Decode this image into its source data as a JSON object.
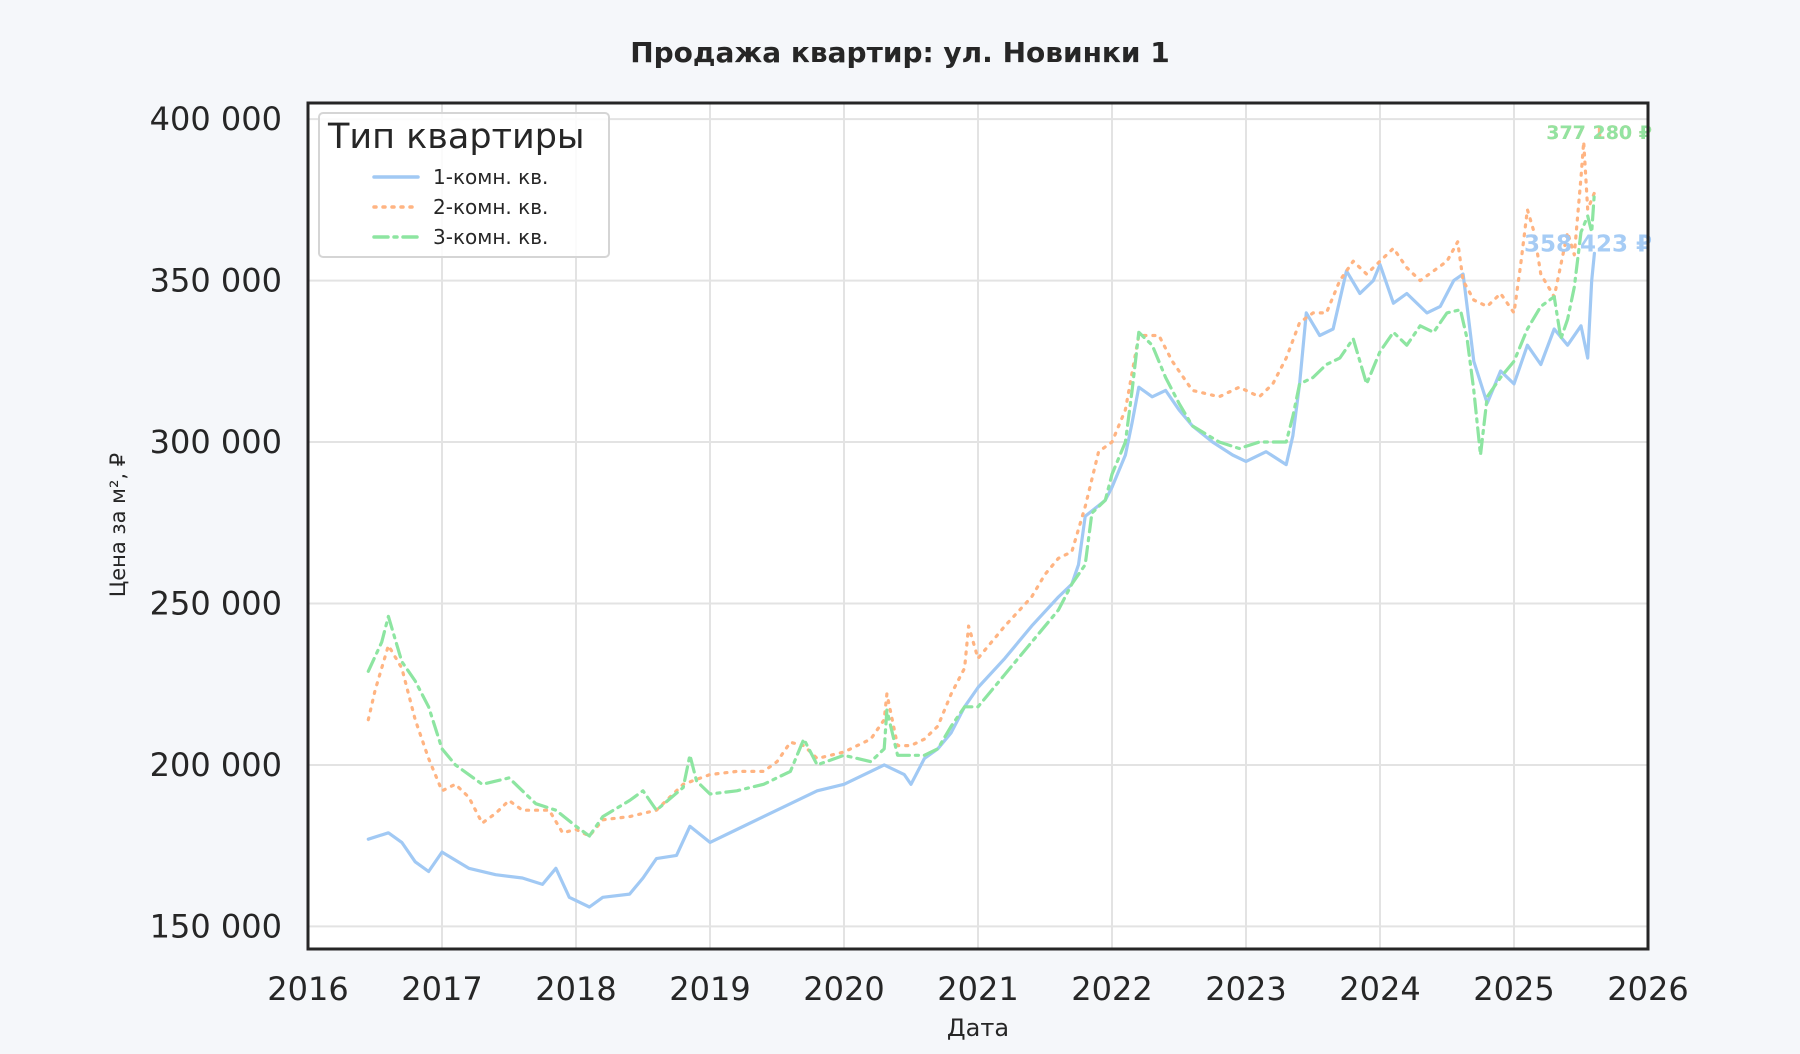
{
  "chart_data": {
    "type": "line",
    "title": "Продажа квартир: ул. Новинки 1",
    "xlabel": "Дата",
    "ylabel": "Цена за м², ₽",
    "xlim": [
      2016,
      2026
    ],
    "ylim": [
      143000,
      405000
    ],
    "x_ticks": [
      2016,
      2017,
      2018,
      2019,
      2020,
      2021,
      2022,
      2023,
      2024,
      2025,
      2026
    ],
    "x_tick_labels": [
      "2016",
      "2017",
      "2018",
      "2019",
      "2020",
      "2021",
      "2022",
      "2023",
      "2024",
      "2025",
      "2026"
    ],
    "y_ticks": [
      150000,
      200000,
      250000,
      300000,
      350000,
      400000
    ],
    "y_tick_labels": [
      "150 000",
      "200 000",
      "250 000",
      "300 000",
      "350 000",
      "400 000"
    ],
    "grid": true,
    "legend": {
      "title": "Тип квартиры",
      "position": "top-left"
    },
    "series": [
      {
        "name": "1-комн. кв.",
        "color": "#a1c9f4",
        "style": "solid",
        "end_label": "358 423 ₽",
        "points": [
          [
            2016.45,
            177000
          ],
          [
            2016.6,
            179000
          ],
          [
            2016.7,
            176000
          ],
          [
            2016.8,
            170000
          ],
          [
            2016.9,
            167000
          ],
          [
            2017.0,
            173000
          ],
          [
            2017.2,
            168000
          ],
          [
            2017.4,
            166000
          ],
          [
            2017.6,
            165000
          ],
          [
            2017.75,
            163000
          ],
          [
            2017.85,
            168000
          ],
          [
            2017.95,
            159000
          ],
          [
            2018.1,
            156000
          ],
          [
            2018.2,
            159000
          ],
          [
            2018.4,
            160000
          ],
          [
            2018.5,
            165000
          ],
          [
            2018.6,
            171000
          ],
          [
            2018.75,
            172000
          ],
          [
            2018.85,
            181000
          ],
          [
            2019.0,
            176000
          ],
          [
            2019.2,
            180000
          ],
          [
            2019.4,
            184000
          ],
          [
            2019.6,
            188000
          ],
          [
            2019.8,
            192000
          ],
          [
            2020.0,
            194000
          ],
          [
            2020.2,
            198000
          ],
          [
            2020.3,
            200000
          ],
          [
            2020.45,
            197000
          ],
          [
            2020.5,
            194000
          ],
          [
            2020.6,
            202000
          ],
          [
            2020.7,
            205000
          ],
          [
            2020.8,
            210000
          ],
          [
            2020.9,
            218000
          ],
          [
            2021.0,
            224000
          ],
          [
            2021.2,
            233000
          ],
          [
            2021.4,
            243000
          ],
          [
            2021.6,
            252000
          ],
          [
            2021.7,
            256000
          ],
          [
            2021.75,
            262000
          ],
          [
            2021.8,
            277000
          ],
          [
            2021.95,
            282000
          ],
          [
            2022.0,
            286000
          ],
          [
            2022.1,
            296000
          ],
          [
            2022.15,
            306000
          ],
          [
            2022.2,
            317000
          ],
          [
            2022.3,
            314000
          ],
          [
            2022.4,
            316000
          ],
          [
            2022.5,
            310000
          ],
          [
            2022.6,
            305000
          ],
          [
            2022.75,
            300000
          ],
          [
            2022.9,
            296000
          ],
          [
            2023.0,
            294000
          ],
          [
            2023.15,
            297000
          ],
          [
            2023.3,
            293000
          ],
          [
            2023.35,
            302000
          ],
          [
            2023.4,
            318000
          ],
          [
            2023.45,
            340000
          ],
          [
            2023.55,
            333000
          ],
          [
            2023.65,
            335000
          ],
          [
            2023.75,
            353000
          ],
          [
            2023.85,
            346000
          ],
          [
            2023.95,
            350000
          ],
          [
            2024.0,
            355000
          ],
          [
            2024.1,
            343000
          ],
          [
            2024.2,
            346000
          ],
          [
            2024.35,
            340000
          ],
          [
            2024.45,
            342000
          ],
          [
            2024.55,
            350000
          ],
          [
            2024.62,
            352000
          ],
          [
            2024.65,
            342000
          ],
          [
            2024.7,
            325000
          ],
          [
            2024.8,
            312000
          ],
          [
            2024.9,
            322000
          ],
          [
            2025.0,
            318000
          ],
          [
            2025.1,
            330000
          ],
          [
            2025.2,
            324000
          ],
          [
            2025.3,
            335000
          ],
          [
            2025.4,
            330000
          ],
          [
            2025.5,
            336000
          ],
          [
            2025.55,
            326000
          ],
          [
            2025.58,
            350000
          ],
          [
            2025.6,
            358423
          ]
        ]
      },
      {
        "name": "2-комн. кв.",
        "color": "#ffb482",
        "style": "dotted",
        "end_label": "377 180 ₽",
        "points": [
          [
            2016.45,
            214000
          ],
          [
            2016.5,
            223000
          ],
          [
            2016.6,
            237000
          ],
          [
            2016.7,
            230000
          ],
          [
            2016.8,
            214000
          ],
          [
            2016.9,
            202000
          ],
          [
            2017.0,
            192000
          ],
          [
            2017.1,
            194000
          ],
          [
            2017.2,
            190000
          ],
          [
            2017.3,
            182000
          ],
          [
            2017.4,
            185000
          ],
          [
            2017.5,
            189000
          ],
          [
            2017.6,
            186000
          ],
          [
            2017.8,
            186000
          ],
          [
            2017.9,
            179000
          ],
          [
            2018.0,
            180000
          ],
          [
            2018.1,
            178000
          ],
          [
            2018.2,
            183000
          ],
          [
            2018.4,
            184000
          ],
          [
            2018.6,
            186000
          ],
          [
            2018.8,
            194000
          ],
          [
            2019.0,
            197000
          ],
          [
            2019.2,
            198000
          ],
          [
            2019.4,
            198000
          ],
          [
            2019.5,
            201000
          ],
          [
            2019.6,
            207000
          ],
          [
            2019.7,
            206000
          ],
          [
            2019.8,
            202000
          ],
          [
            2020.0,
            204000
          ],
          [
            2020.2,
            208000
          ],
          [
            2020.3,
            214000
          ],
          [
            2020.32,
            222000
          ],
          [
            2020.4,
            206000
          ],
          [
            2020.5,
            206000
          ],
          [
            2020.6,
            208000
          ],
          [
            2020.7,
            212000
          ],
          [
            2020.8,
            222000
          ],
          [
            2020.9,
            230000
          ],
          [
            2020.93,
            243000
          ],
          [
            2021.0,
            233000
          ],
          [
            2021.2,
            243000
          ],
          [
            2021.4,
            252000
          ],
          [
            2021.5,
            259000
          ],
          [
            2021.6,
            264000
          ],
          [
            2021.7,
            266000
          ],
          [
            2021.8,
            280000
          ],
          [
            2021.9,
            297000
          ],
          [
            2022.0,
            300000
          ],
          [
            2022.1,
            310000
          ],
          [
            2022.2,
            333000
          ],
          [
            2022.35,
            333000
          ],
          [
            2022.45,
            325000
          ],
          [
            2022.6,
            316000
          ],
          [
            2022.8,
            314000
          ],
          [
            2022.95,
            317000
          ],
          [
            2023.1,
            314000
          ],
          [
            2023.2,
            318000
          ],
          [
            2023.3,
            326000
          ],
          [
            2023.4,
            337000
          ],
          [
            2023.5,
            340000
          ],
          [
            2023.6,
            340000
          ],
          [
            2023.7,
            350000
          ],
          [
            2023.8,
            356000
          ],
          [
            2023.9,
            352000
          ],
          [
            2024.0,
            356000
          ],
          [
            2024.1,
            360000
          ],
          [
            2024.2,
            354000
          ],
          [
            2024.3,
            350000
          ],
          [
            2024.4,
            353000
          ],
          [
            2024.5,
            356000
          ],
          [
            2024.58,
            362000
          ],
          [
            2024.62,
            350000
          ],
          [
            2024.7,
            344000
          ],
          [
            2024.8,
            342000
          ],
          [
            2024.9,
            346000
          ],
          [
            2025.0,
            340000
          ],
          [
            2025.05,
            355000
          ],
          [
            2025.1,
            372000
          ],
          [
            2025.15,
            365000
          ],
          [
            2025.2,
            352000
          ],
          [
            2025.3,
            345000
          ],
          [
            2025.4,
            365000
          ],
          [
            2025.45,
            358000
          ],
          [
            2025.5,
            382000
          ],
          [
            2025.52,
            393000
          ],
          [
            2025.55,
            372000
          ],
          [
            2025.6,
            377180
          ]
        ]
      },
      {
        "name": "3-комн. кв.",
        "color": "#8de5a1",
        "style": "dashdot",
        "end_label": "377 280 ₽",
        "points": [
          [
            2016.45,
            229000
          ],
          [
            2016.55,
            238000
          ],
          [
            2016.6,
            246000
          ],
          [
            2016.7,
            232000
          ],
          [
            2016.8,
            226000
          ],
          [
            2016.9,
            218000
          ],
          [
            2017.0,
            205000
          ],
          [
            2017.1,
            200000
          ],
          [
            2017.3,
            194000
          ],
          [
            2017.5,
            196000
          ],
          [
            2017.7,
            188000
          ],
          [
            2017.85,
            186000
          ],
          [
            2018.0,
            181000
          ],
          [
            2018.1,
            178000
          ],
          [
            2018.2,
            184000
          ],
          [
            2018.4,
            189000
          ],
          [
            2018.5,
            192000
          ],
          [
            2018.6,
            186000
          ],
          [
            2018.8,
            193000
          ],
          [
            2018.85,
            203000
          ],
          [
            2018.9,
            195000
          ],
          [
            2019.0,
            191000
          ],
          [
            2019.2,
            192000
          ],
          [
            2019.4,
            194000
          ],
          [
            2019.6,
            198000
          ],
          [
            2019.7,
            208000
          ],
          [
            2019.8,
            200000
          ],
          [
            2020.0,
            203000
          ],
          [
            2020.2,
            201000
          ],
          [
            2020.3,
            205000
          ],
          [
            2020.32,
            217000
          ],
          [
            2020.4,
            203000
          ],
          [
            2020.5,
            203000
          ],
          [
            2020.6,
            203000
          ],
          [
            2020.7,
            205000
          ],
          [
            2020.8,
            212000
          ],
          [
            2020.9,
            218000
          ],
          [
            2021.0,
            218000
          ],
          [
            2021.2,
            228000
          ],
          [
            2021.4,
            238000
          ],
          [
            2021.6,
            248000
          ],
          [
            2021.7,
            256000
          ],
          [
            2021.8,
            262000
          ],
          [
            2021.85,
            278000
          ],
          [
            2021.95,
            282000
          ],
          [
            2022.0,
            290000
          ],
          [
            2022.1,
            300000
          ],
          [
            2022.15,
            316000
          ],
          [
            2022.2,
            334000
          ],
          [
            2022.3,
            330000
          ],
          [
            2022.4,
            320000
          ],
          [
            2022.5,
            312000
          ],
          [
            2022.6,
            305000
          ],
          [
            2022.8,
            300000
          ],
          [
            2022.95,
            298000
          ],
          [
            2023.1,
            300000
          ],
          [
            2023.3,
            300000
          ],
          [
            2023.35,
            308000
          ],
          [
            2023.4,
            318000
          ],
          [
            2023.5,
            320000
          ],
          [
            2023.6,
            324000
          ],
          [
            2023.7,
            326000
          ],
          [
            2023.8,
            332000
          ],
          [
            2023.9,
            318000
          ],
          [
            2024.0,
            328000
          ],
          [
            2024.1,
            334000
          ],
          [
            2024.2,
            330000
          ],
          [
            2024.3,
            336000
          ],
          [
            2024.4,
            334000
          ],
          [
            2024.5,
            340000
          ],
          [
            2024.6,
            341000
          ],
          [
            2024.65,
            332000
          ],
          [
            2024.7,
            316000
          ],
          [
            2024.75,
            296000
          ],
          [
            2024.8,
            314000
          ],
          [
            2024.9,
            320000
          ],
          [
            2025.0,
            325000
          ],
          [
            2025.1,
            335000
          ],
          [
            2025.2,
            342000
          ],
          [
            2025.3,
            345000
          ],
          [
            2025.35,
            332000
          ],
          [
            2025.4,
            338000
          ],
          [
            2025.45,
            348000
          ],
          [
            2025.5,
            365000
          ],
          [
            2025.55,
            370000
          ],
          [
            2025.58,
            365000
          ],
          [
            2025.6,
            377280
          ]
        ]
      }
    ]
  }
}
